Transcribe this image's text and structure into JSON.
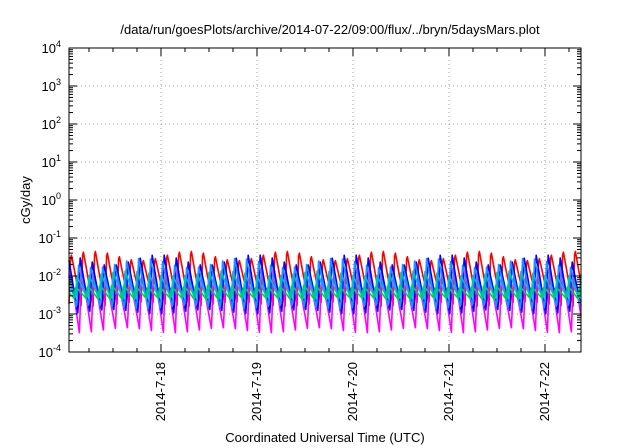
{
  "chart_data": {
    "type": "line",
    "title": "/data/run/goesPlots/archive/2014-07-22/09:00/flux/../bryn/5daysMars.plot",
    "xlabel": "Coordinated Universal Time (UTC)",
    "ylabel": "cGy/day",
    "y_scale": "log",
    "ylim": [
      0.0001,
      10000
    ],
    "y_ticks": [
      {
        "base": "10",
        "exp": "-4"
      },
      {
        "base": "10",
        "exp": "-3"
      },
      {
        "base": "10",
        "exp": "-2"
      },
      {
        "base": "10",
        "exp": "-1"
      },
      {
        "base": "10",
        "exp": "0"
      },
      {
        "base": "10",
        "exp": "1"
      },
      {
        "base": "10",
        "exp": "2"
      },
      {
        "base": "10",
        "exp": "3"
      },
      {
        "base": "10",
        "exp": "4"
      }
    ],
    "xlim": [
      "2014-07-17 01:00",
      "2014-07-22 09:00"
    ],
    "x_ticks": [
      "2014-7-18",
      "2014-7-19",
      "2014-7-20",
      "2014-7-21",
      "2014-7-22"
    ],
    "x_tick_dates": [
      "2014-07-18",
      "2014-07-19",
      "2014-07-20",
      "2014-07-21",
      "2014-07-22"
    ],
    "grid": true,
    "legend": "none",
    "oscillation_period_hours": 3,
    "series": [
      {
        "color": "#ff0000",
        "peak": 0.055,
        "trough": 0.0016
      },
      {
        "color": "#ff00ff",
        "peak": 0.022,
        "trough": 0.0003
      },
      {
        "color": "#0000ff",
        "peak": 0.04,
        "trough": 0.0009
      },
      {
        "color": "#1e90ff",
        "peak": 0.03,
        "trough": 0.0012
      },
      {
        "color": "#00bfbf",
        "peak": 0.014,
        "trough": 0.0022
      },
      {
        "color": "#00cc66",
        "peak": 0.006,
        "trough": 0.0025
      }
    ]
  }
}
